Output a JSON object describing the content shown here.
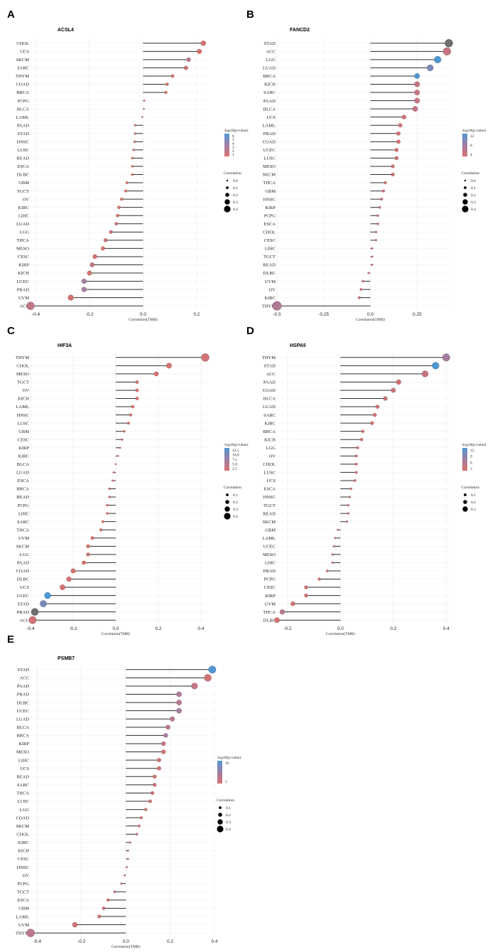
{
  "chart_data": [
    {
      "panel": "A",
      "type": "lollipop",
      "title": "ACSL4",
      "xlabel": "Correlation(TMB)",
      "xlim": [
        -0.42,
        0.24
      ],
      "xticks": [
        -0.4,
        -0.2,
        0.0,
        0.2
      ],
      "categories": [
        "CHOL",
        "UCS",
        "SKCM",
        "SARC",
        "THYM",
        "COAD",
        "BRCA",
        "PCPG",
        "BLCA",
        "LAML",
        "PAAD",
        "STAD",
        "HNSC",
        "LUSC",
        "READ",
        "ESCA",
        "DLBC",
        "GBM",
        "TGCT",
        "OV",
        "KIRC",
        "LIHC",
        "LUAD",
        "LGG",
        "THCA",
        "MESO",
        "CESC",
        "KIRP",
        "KICH",
        "UCEC",
        "PRAD",
        "UVM",
        "ACC"
      ],
      "values": [
        0.225,
        0.21,
        0.17,
        0.16,
        0.11,
        0.09,
        0.085,
        0.005,
        0.003,
        -0.003,
        -0.03,
        -0.03,
        -0.032,
        -0.035,
        -0.04,
        -0.04,
        -0.04,
        -0.06,
        -0.065,
        -0.08,
        -0.09,
        -0.095,
        -0.1,
        -0.12,
        -0.14,
        -0.15,
        -0.18,
        -0.19,
        -0.2,
        -0.22,
        -0.22,
        -0.27,
        -0.42
      ],
      "neglogp": [
        1.2,
        1.3,
        3.6,
        2.6,
        1.5,
        1.5,
        1.6,
        1.0,
        1.0,
        1.0,
        1.0,
        1.0,
        1.0,
        1.0,
        1.0,
        1.0,
        1.0,
        1.0,
        1.0,
        1.0,
        1.5,
        1.4,
        1.5,
        2.2,
        2.5,
        1.2,
        1.6,
        3.4,
        1.2,
        6.0,
        6.0,
        1.6,
        3.4
      ],
      "color_legend": {
        "title": "-log10(p-value)",
        "ticks": [
          "6",
          "5",
          "4",
          "3",
          "2",
          "1"
        ]
      },
      "size_legend": {
        "title": "Correlation",
        "labels": [
          "0.0",
          "0.1",
          "0.2",
          "0.3",
          "0.4"
        ]
      }
    },
    {
      "panel": "B",
      "type": "lollipop",
      "title": "FANCD2",
      "xlabel": "Correlation(TMB)",
      "xlim": [
        -0.5,
        0.42
      ],
      "xticks": [
        -0.5,
        -0.25,
        0.0,
        0.25
      ],
      "categories": [
        "STAD",
        "ACC",
        "LGG",
        "LUAD",
        "BRCA",
        "KICH",
        "SARC",
        "PAAD",
        "BLCA",
        "UCS",
        "LAML",
        "PRAD",
        "COAD",
        "UCEC",
        "LUSC",
        "MESO",
        "SKCM",
        "THCA",
        "GBM",
        "HNSC",
        "KIRP",
        "PCPG",
        "ESCA",
        "CHOL",
        "CESC",
        "LIHC",
        "TGCT",
        "READ",
        "DLBC",
        "UVM",
        "OV",
        "KIRC",
        "THYM"
      ],
      "values": [
        0.42,
        0.41,
        0.36,
        0.32,
        0.25,
        0.25,
        0.25,
        0.25,
        0.24,
        0.18,
        0.16,
        0.15,
        0.15,
        0.14,
        0.14,
        0.12,
        0.12,
        0.08,
        0.07,
        0.06,
        0.05,
        0.04,
        0.04,
        0.03,
        0.03,
        0.01,
        0.01,
        0.01,
        -0.01,
        -0.04,
        -0.05,
        -0.06,
        -0.5
      ],
      "neglogp": [
        16,
        3,
        14,
        9,
        13,
        3,
        3,
        3,
        3,
        2,
        2,
        2,
        2,
        2,
        2,
        2,
        2,
        2,
        2,
        2,
        2,
        2,
        2,
        2,
        2,
        2,
        2,
        2,
        2,
        2,
        2,
        2,
        5
      ],
      "color_legend": {
        "title": "-log10(p-value)",
        "ticks": [
          "12",
          "8",
          "4"
        ]
      },
      "size_legend": {
        "title": "Correlation",
        "labels": [
          "0.0",
          "0.1",
          "0.2",
          "0.3",
          "0.4"
        ]
      }
    },
    {
      "panel": "C",
      "type": "lollipop",
      "title": "HIF3A",
      "xlabel": "Correlation(TMB)",
      "xlim": [
        -0.4,
        0.43
      ],
      "xticks": [
        -0.4,
        -0.2,
        0.0,
        0.2,
        0.4
      ],
      "categories": [
        "THYM",
        "CHOL",
        "MESO",
        "TGCT",
        "OV",
        "KICH",
        "LAML",
        "HNSC",
        "LUSC",
        "GBM",
        "CESC",
        "KIRP",
        "KIRC",
        "BLCA",
        "LUAD",
        "ESCA",
        "BRCA",
        "READ",
        "PCPG",
        "LIHC",
        "SARC",
        "THCA",
        "UVM",
        "SKCM",
        "LGG",
        "PAAD",
        "COAD",
        "DLBC",
        "UCS",
        "UCEC",
        "STAD",
        "PRAD",
        "ACC"
      ],
      "values": [
        0.42,
        0.25,
        0.19,
        0.1,
        0.1,
        0.1,
        0.08,
        0.07,
        0.06,
        0.04,
        0.03,
        0.02,
        0.01,
        0.0,
        -0.01,
        -0.015,
        -0.03,
        -0.03,
        -0.04,
        -0.04,
        -0.06,
        -0.07,
        -0.11,
        -0.13,
        -0.13,
        -0.15,
        -0.2,
        -0.22,
        -0.25,
        -0.32,
        -0.34,
        -0.38,
        -0.39
      ],
      "neglogp": [
        2.0,
        1.5,
        1.3,
        1.0,
        1.0,
        1.0,
        1.0,
        1.0,
        1.0,
        1.0,
        1.0,
        1.0,
        1.0,
        1.0,
        1.0,
        1.0,
        1.0,
        1.0,
        1.0,
        1.0,
        1.0,
        1.0,
        1.0,
        1.0,
        1.5,
        1.3,
        1.5,
        1.3,
        1.6,
        12.0,
        9.0,
        16.0,
        2.0
      ],
      "color_legend": {
        "title": "-log10(p-value)",
        "ticks": [
          "12.5",
          "10.0",
          "7.5",
          "5.0",
          "2.5"
        ]
      },
      "size_legend": {
        "title": "Correlation",
        "labels": [
          "0.1",
          "0.2",
          "0.3",
          "0.4"
        ]
      }
    },
    {
      "panel": "D",
      "type": "lollipop",
      "title": "HSPA5",
      "xlabel": "Correlation(TMB)",
      "xlim": [
        -0.24,
        0.41
      ],
      "xticks": [
        -0.2,
        0.0,
        0.2,
        0.4
      ],
      "categories": [
        "THYM",
        "STAD",
        "ACC",
        "PAAD",
        "COAD",
        "BLCA",
        "LUAD",
        "SARC",
        "KIRC",
        "BRCA",
        "KICH",
        "LGG",
        "OV",
        "CHOL",
        "LUSC",
        "UCS",
        "ESCA",
        "HNSC",
        "TGCT",
        "READ",
        "SKCM",
        "GBM",
        "LAML",
        "UCEC",
        "MESO",
        "LIHC",
        "PRAD",
        "PCPG",
        "CESC",
        "KIRP",
        "UVM",
        "THCA",
        "DLBC"
      ],
      "values": [
        0.4,
        0.36,
        0.32,
        0.22,
        0.2,
        0.17,
        0.14,
        0.13,
        0.12,
        0.085,
        0.08,
        0.065,
        0.06,
        0.06,
        0.06,
        0.055,
        0.04,
        0.035,
        0.03,
        0.03,
        0.025,
        -0.01,
        -0.02,
        -0.025,
        -0.03,
        -0.03,
        -0.05,
        -0.08,
        -0.13,
        -0.13,
        -0.18,
        -0.22,
        -0.24
      ],
      "neglogp": [
        6,
        12,
        3,
        1.5,
        2.5,
        2.5,
        1.5,
        1.5,
        1.5,
        1.5,
        1.5,
        1.5,
        1.5,
        1.5,
        1.5,
        1.5,
        1.5,
        1.5,
        1.5,
        1.5,
        1.5,
        1.5,
        1.5,
        1.5,
        1.5,
        1.5,
        1.5,
        1.5,
        1.5,
        1.5,
        1.5,
        4.5,
        1.5
      ],
      "color_legend": {
        "title": "-log10(p-value)",
        "ticks": [
          "12",
          "9",
          "6",
          "3"
        ]
      },
      "size_legend": {
        "title": "Correlation",
        "labels": [
          "0.1",
          "0.2",
          "0.3"
        ]
      }
    },
    {
      "panel": "E",
      "type": "lollipop",
      "title": "PSMB7",
      "xlabel": "Correlation(TMB)",
      "xlim": [
        -0.43,
        0.4
      ],
      "xticks": [
        -0.4,
        -0.2,
        0.0,
        0.2,
        0.4
      ],
      "categories": [
        "STAD",
        "ACC",
        "PAAD",
        "PRAD",
        "DLBC",
        "UCEC",
        "LUAD",
        "BLCA",
        "BRCA",
        "KIRP",
        "MESO",
        "LIHC",
        "UCS",
        "READ",
        "SARC",
        "THCA",
        "LUSC",
        "LGG",
        "COAD",
        "SKCM",
        "CHOL",
        "KIRC",
        "KICH",
        "CESC",
        "HNSC",
        "OV",
        "PCPG",
        "TGCT",
        "ESCA",
        "GBM",
        "LAML",
        "UVM",
        "THYM"
      ],
      "values": [
        0.39,
        0.37,
        0.31,
        0.24,
        0.24,
        0.24,
        0.21,
        0.19,
        0.18,
        0.17,
        0.17,
        0.15,
        0.15,
        0.13,
        0.13,
        0.12,
        0.11,
        0.09,
        0.07,
        0.06,
        0.05,
        0.02,
        0.01,
        0.01,
        0.005,
        -0.005,
        -0.02,
        -0.05,
        -0.08,
        -0.1,
        -0.12,
        -0.23,
        -0.43
      ],
      "neglogp": [
        13,
        2,
        3,
        5,
        4,
        6,
        4,
        4,
        6,
        3,
        2,
        2,
        2,
        2,
        2,
        2,
        2,
        2,
        2,
        2,
        2,
        2,
        2,
        2,
        2,
        2,
        2,
        2,
        2,
        2,
        2,
        2,
        4
      ],
      "color_legend": {
        "title": "-log10(p-value)",
        "ticks": [
          "10",
          "5"
        ]
      },
      "size_legend": {
        "title": "Correlation",
        "labels": [
          "0.1",
          "0.2",
          "0.3",
          "0.4"
        ]
      }
    }
  ]
}
